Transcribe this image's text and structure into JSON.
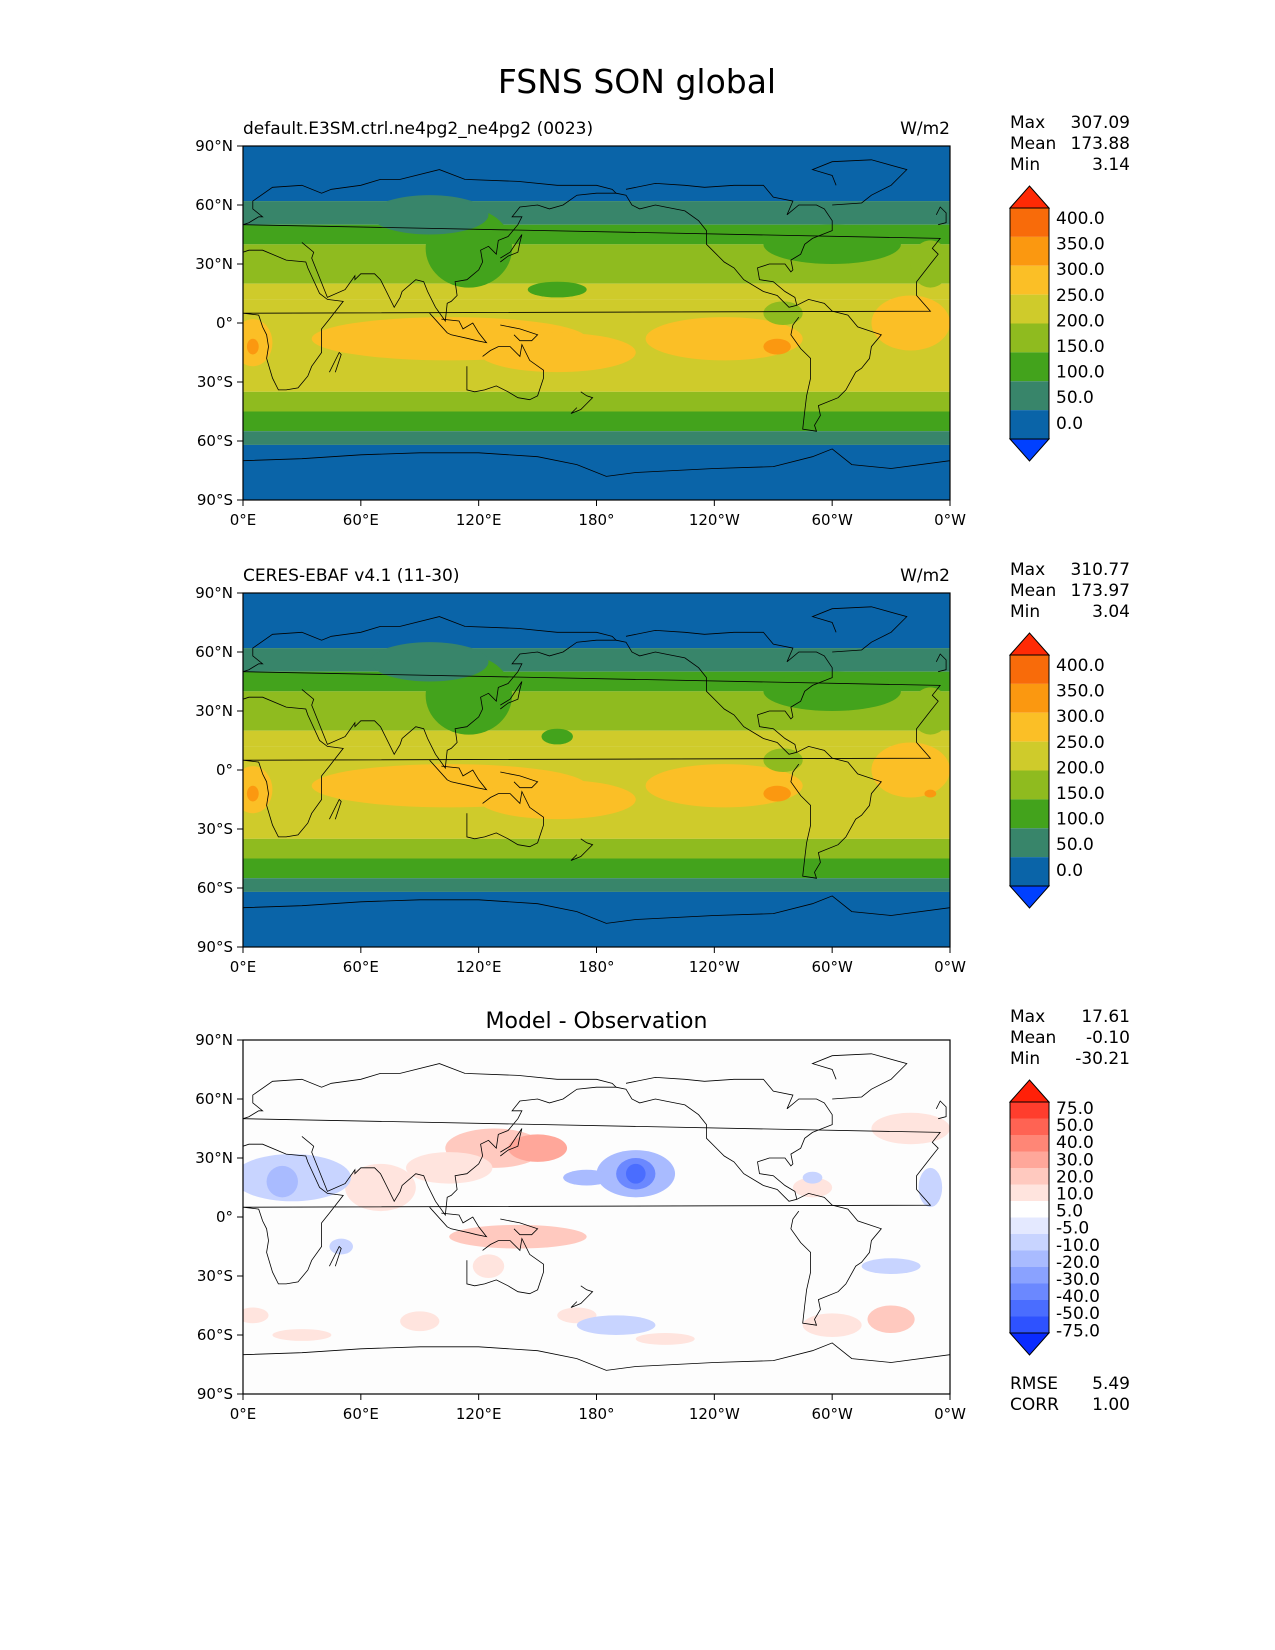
{
  "figure_title": "FSNS SON global",
  "lon_ticks": [
    "0°E",
    "60°E",
    "120°E",
    "180°",
    "120°W",
    "60°W",
    "0°W"
  ],
  "lat_ticks": [
    "90°N",
    "60°N",
    "30°N",
    "0°",
    "30°S",
    "60°S",
    "90°S"
  ],
  "colors": {
    "levels_main": [
      "#0040ff",
      "#0a64a8",
      "#38856a",
      "#43a31c",
      "#8fbb1f",
      "#cfcb2b",
      "#fbbf26",
      "#fb9810",
      "#f86b0a",
      "#ff2a05"
    ],
    "levels_diff": [
      "#0a2bff",
      "#2e52ff",
      "#4a6dff",
      "#6b88ff",
      "#8aa2ff",
      "#a9bbff",
      "#c8d4ff",
      "#e4e9ff",
      "#ffffff",
      "#ffe4de",
      "#ffc9bf",
      "#ffa79a",
      "#ff8676",
      "#ff6353",
      "#ff3d2d",
      "#ff2008"
    ],
    "land_outline": "#000000"
  },
  "panels": [
    {
      "left_title": "default.E3SM.ctrl.ne4pg2_ne4pg2 (0023)",
      "center_title": "",
      "units": "W/m2",
      "stats": [
        [
          "Max",
          "307.09"
        ],
        [
          "Mean",
          "173.88"
        ],
        [
          "Min",
          "3.14"
        ]
      ],
      "colorbar_labels": [
        "400.0",
        "350.0",
        "300.0",
        "250.0",
        "200.0",
        "150.0",
        "100.0",
        "50.0",
        "0.0"
      ]
    },
    {
      "left_title": "CERES-EBAF v4.1 (11-30)",
      "center_title": "",
      "units": "W/m2",
      "stats": [
        [
          "Max",
          "310.77"
        ],
        [
          "Mean",
          "173.97"
        ],
        [
          "Min",
          "3.04"
        ]
      ],
      "colorbar_labels": [
        "400.0",
        "350.0",
        "300.0",
        "250.0",
        "200.0",
        "150.0",
        "100.0",
        "50.0",
        "0.0"
      ]
    },
    {
      "left_title": "",
      "center_title": "Model - Observation",
      "units": "",
      "stats": [
        [
          "Max",
          "17.61"
        ],
        [
          "Mean",
          "-0.10"
        ],
        [
          "Min",
          "-30.21"
        ]
      ],
      "colorbar_labels": [
        "75.0",
        "50.0",
        "40.0",
        "30.0",
        "20.0",
        "10.0",
        "5.0",
        "-5.0",
        "-10.0",
        "-20.0",
        "-30.0",
        "-40.0",
        "-50.0",
        "-75.0"
      ],
      "bottom_stats": [
        [
          "RMSE",
          "5.49"
        ],
        [
          "CORR",
          "1.00"
        ]
      ]
    }
  ],
  "chart_data": [
    {
      "type": "heatmap",
      "title": "FSNS SON global",
      "subtitle": "default.E3SM.ctrl.ne4pg2_ne4pg2 (0023)",
      "units": "W/m2",
      "x_range": [
        "0°E",
        "0°W"
      ],
      "y_range": [
        "90°S",
        "90°N"
      ],
      "zonal_bands": [
        {
          "lat": [
            62,
            90
          ],
          "value_range": [
            0,
            50
          ]
        },
        {
          "lat": [
            48,
            62
          ],
          "value_range": [
            50,
            100
          ]
        },
        {
          "lat": [
            30,
            48
          ],
          "value_range": [
            100,
            150
          ]
        },
        {
          "lat": [
            15,
            30
          ],
          "value_range": [
            150,
            200
          ]
        },
        {
          "lat": [
            -35,
            15
          ],
          "value_range": [
            200,
            250
          ]
        },
        {
          "lat": [
            -45,
            -35
          ],
          "value_range": [
            150,
            200
          ]
        },
        {
          "lat": [
            -55,
            -45
          ],
          "value_range": [
            100,
            150
          ]
        },
        {
          "lat": [
            -63,
            -55
          ],
          "value_range": [
            50,
            100
          ]
        },
        {
          "lat": [
            -90,
            -63
          ],
          "value_range": [
            0,
            50
          ]
        }
      ],
      "levels": [
        0,
        50,
        100,
        150,
        200,
        250,
        300,
        350,
        400
      ],
      "max": 307.09,
      "mean": 173.88,
      "min": 3.14
    },
    {
      "type": "heatmap",
      "subtitle": "CERES-EBAF v4.1 (11-30)",
      "units": "W/m2",
      "x_range": [
        "0°E",
        "0°W"
      ],
      "y_range": [
        "90°S",
        "90°N"
      ],
      "levels": [
        0,
        50,
        100,
        150,
        200,
        250,
        300,
        350,
        400
      ],
      "max": 310.77,
      "mean": 173.97,
      "min": 3.04
    },
    {
      "type": "heatmap",
      "subtitle": "Model - Observation",
      "x_range": [
        "0°E",
        "0°W"
      ],
      "y_range": [
        "90°S",
        "90°N"
      ],
      "levels": [
        -75,
        -50,
        -40,
        -30,
        -20,
        -10,
        -5,
        5,
        10,
        20,
        30,
        40,
        50,
        75
      ],
      "max": 17.61,
      "mean": -0.1,
      "min": -30.21,
      "rmse": 5.49,
      "corr": 1.0
    }
  ]
}
